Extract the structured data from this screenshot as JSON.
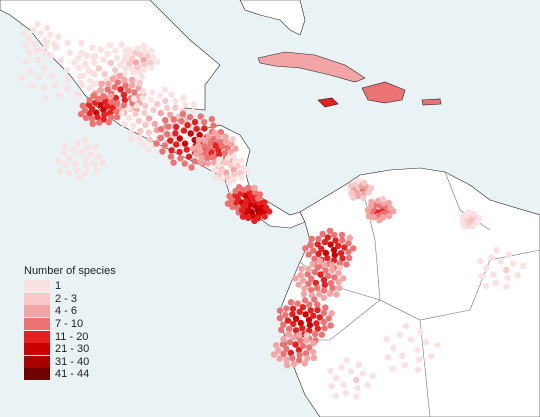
{
  "legend": {
    "title": "Number of species",
    "classes": [
      {
        "label": "1",
        "color": "#fbe2e2"
      },
      {
        "label": "2 - 3",
        "color": "#f8c9c9"
      },
      {
        "label": "4 - 6",
        "color": "#f3a4a4"
      },
      {
        "label": "7 - 10",
        "color": "#ec7373"
      },
      {
        "label": "11 - 20",
        "color": "#e52020"
      },
      {
        "label": "21 - 30",
        "color": "#cc0000"
      },
      {
        "label": "31 - 40",
        "color": "#a80000"
      },
      {
        "label": "41 - 44",
        "color": "#6e0000"
      }
    ]
  },
  "colors": {
    "ocean": "#e9f3f6",
    "land": "#ffffff",
    "coastline": "#222222",
    "border": "#777777"
  }
}
